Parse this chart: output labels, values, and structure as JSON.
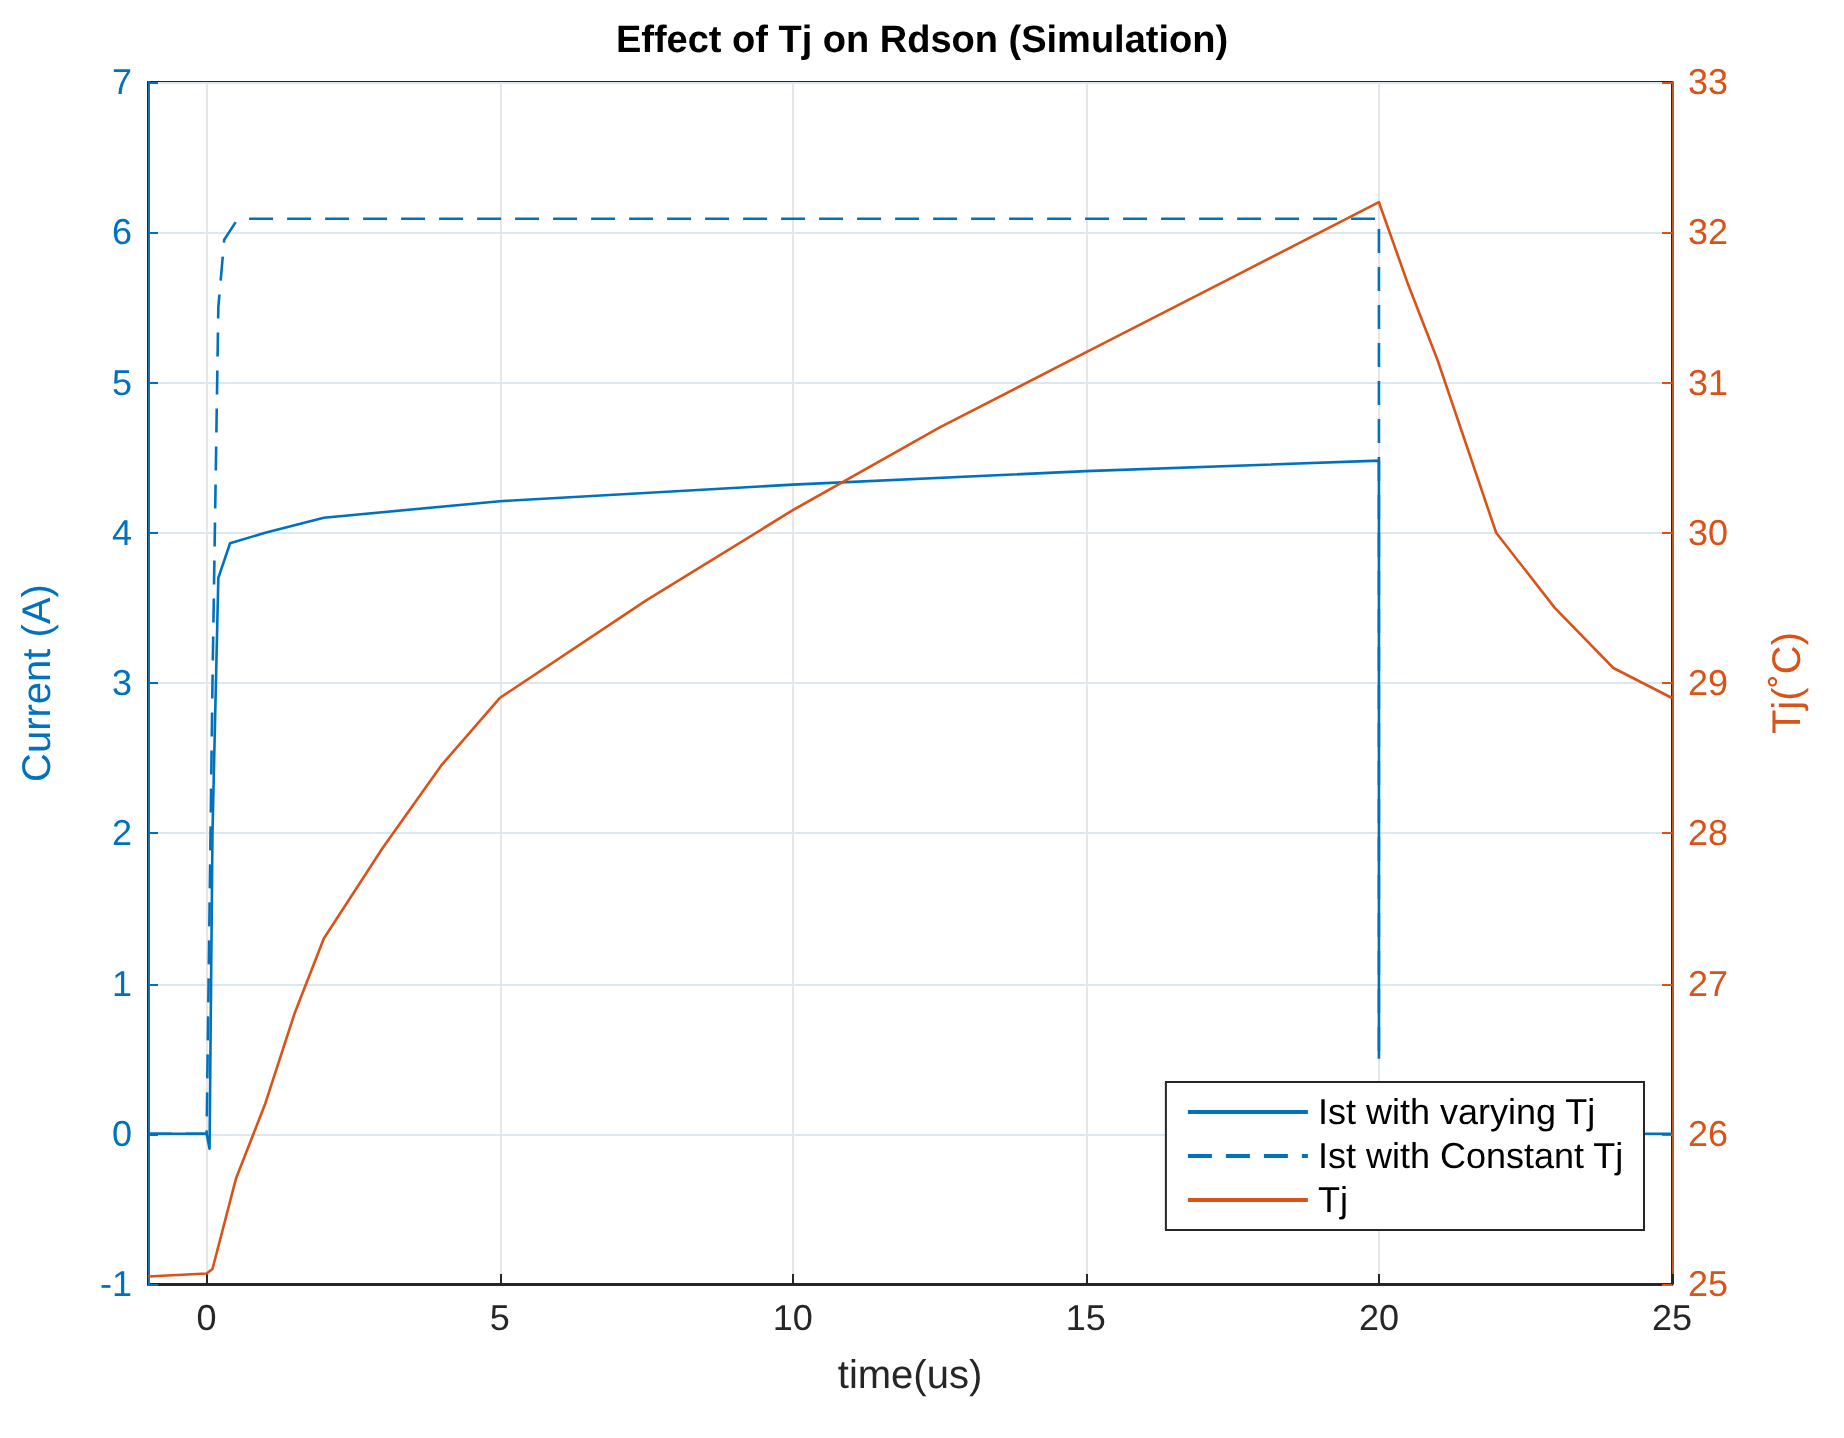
{
  "chart_data": {
    "type": "line",
    "title": "Effect of Tj on Rdson (Simulation)",
    "xlabel": "time(us)",
    "ylabel": "Current (A)",
    "y2label": "Tj(˚C)",
    "xlim": [
      -1,
      25
    ],
    "xticks": [
      0,
      5,
      10,
      15,
      20,
      25
    ],
    "ylim": [
      -1,
      7
    ],
    "yticks": [
      -1,
      0,
      1,
      2,
      3,
      4,
      5,
      6,
      7
    ],
    "y2lim": [
      25,
      33
    ],
    "y2ticks": [
      25,
      26,
      27,
      28,
      29,
      30,
      31,
      32,
      33
    ],
    "grid": true,
    "legend": "bottom right",
    "marker": "none",
    "series": [
      {
        "name": "Ist with varying Tj",
        "color": "#0072bd",
        "line_style": "solid",
        "x": [
          -1,
          0,
          0.05,
          0.1,
          0.2,
          0.4,
          1,
          2,
          5,
          10,
          15,
          20,
          20,
          22,
          24.5,
          25
        ],
        "values": [
          0,
          0,
          -0.1,
          2,
          3.7,
          3.93,
          4.0,
          4.1,
          4.21,
          4.32,
          4.41,
          4.48,
          0.5,
          null,
          0,
          0
        ]
      },
      {
        "name": "Ist with Constant Tj",
        "color": "#0072bd",
        "line_style": "dashed",
        "x": [
          -1,
          0,
          0.1,
          0.2,
          0.3,
          0.5,
          0.7,
          20,
          20
        ],
        "values": [
          0,
          0,
          3,
          5.5,
          5.95,
          6.07,
          6.09,
          6.09,
          0.5
        ]
      },
      {
        "name": "Tj",
        "color": "#d95319",
        "line_style": "solid",
        "axis": "y2",
        "x": [
          -1,
          0,
          0.1,
          0.5,
          1,
          1.5,
          2,
          3,
          4,
          5,
          7.5,
          10,
          12.5,
          15,
          17.5,
          20,
          20.5,
          21,
          22,
          23,
          24,
          25
        ],
        "values": [
          25.05,
          25.07,
          25.1,
          25.7,
          26.2,
          26.8,
          27.3,
          27.9,
          28.45,
          28.9,
          29.55,
          30.15,
          30.7,
          31.2,
          31.7,
          32.2,
          31.65,
          31.15,
          30.0,
          29.5,
          29.1,
          28.9
        ]
      }
    ]
  }
}
